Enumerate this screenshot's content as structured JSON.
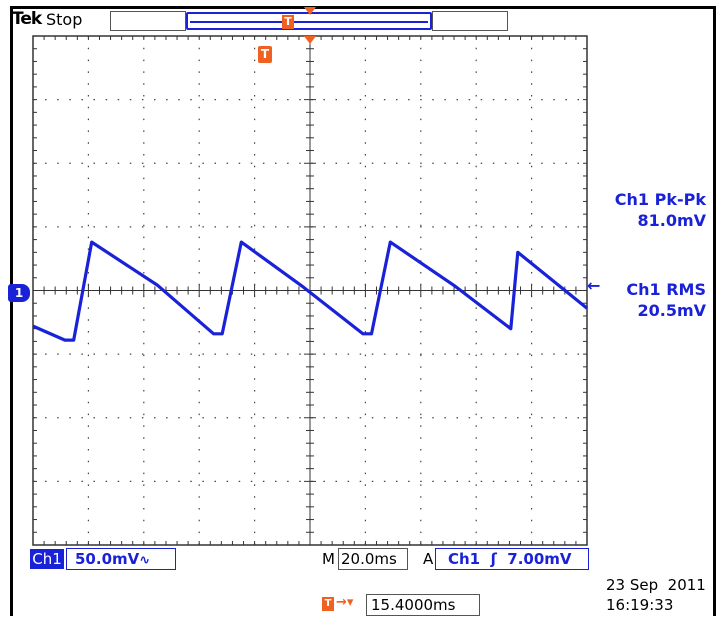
{
  "header": {
    "brand": "Tek",
    "run_status": "Stop",
    "trigger_position_marker": "T",
    "record_position_marker": "T"
  },
  "channel": {
    "ground_marker": "1",
    "label": "Ch1",
    "scale": "50.0mV",
    "bandwidth_symbol": "∿",
    "color": "#1a22d8"
  },
  "measurements": [
    {
      "label": "Ch1 Pk-Pk",
      "value": "81.0mV"
    },
    {
      "label": "Ch1 RMS",
      "value": "20.5mV"
    }
  ],
  "timebase": {
    "prefix": "M",
    "value": "20.0ms"
  },
  "trigger": {
    "prefix": "A",
    "source": "Ch1",
    "slope_symbol": "ʃ",
    "level": "7.00mV",
    "level_marker": "←"
  },
  "delay": {
    "icon": "T",
    "arrow": "→▾",
    "value": "15.4000ms"
  },
  "timestamp": {
    "date": "23 Sep  2011",
    "time": "16:19:33"
  },
  "colors": {
    "trace": "#1a22d8",
    "trigger": "#f06020"
  },
  "chart_data": {
    "type": "line",
    "title": "",
    "xlabel": "",
    "ylabel": "",
    "x_unit": "ms",
    "y_unit": "mV",
    "xlim": [
      -80,
      120
    ],
    "ylim": [
      -200,
      200
    ],
    "grid": true,
    "series": [
      {
        "name": "",
        "x": [
          -80,
          -68.5,
          -65.3,
          -58.8,
          -35,
          -14.8,
          -11.7,
          -4.8,
          16.8,
          39.1,
          42.2,
          49.0,
          72.0,
          92.5,
          95.0,
          120
        ],
        "y": [
          -28,
          -39,
          -39,
          38,
          4,
          -34,
          -34,
          38,
          4,
          -34,
          -34,
          38,
          4,
          -30,
          30,
          -14
        ]
      }
    ]
  }
}
